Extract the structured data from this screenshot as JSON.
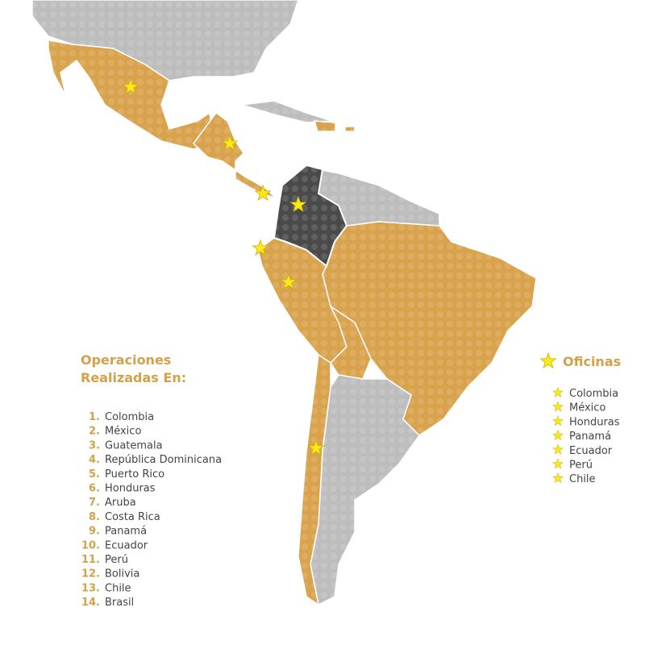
{
  "operations": {
    "title": [
      "Operaciones",
      "Realizadas En:"
    ],
    "items": [
      {
        "number": "1.",
        "name": "Colombia"
      },
      {
        "number": "2.",
        "name": "México"
      },
      {
        "number": "3.",
        "name": "Guatemala"
      },
      {
        "number": "4.",
        "name": "República Dominicana"
      },
      {
        "number": "5.",
        "name": "Puerto Rico"
      },
      {
        "number": "6.",
        "name": "Honduras"
      },
      {
        "number": "7.",
        "name": "Aruba"
      },
      {
        "number": "8.",
        "name": "Costa Rica"
      },
      {
        "number": "9.",
        "name": "Panamá"
      },
      {
        "number": "10.",
        "name": "Ecuador"
      },
      {
        "number": "11.",
        "name": "Perú"
      },
      {
        "number": "12.",
        "name": "Bolivia"
      },
      {
        "number": "13.",
        "name": "Chile"
      },
      {
        "number": "14.",
        "name": "Brasil"
      }
    ]
  },
  "offices": {
    "title": "Oficinas",
    "items": [
      "Colombia",
      "México",
      "Honduras",
      "Panamá",
      "Ecuador",
      "Perú",
      "Chile"
    ]
  }
}
